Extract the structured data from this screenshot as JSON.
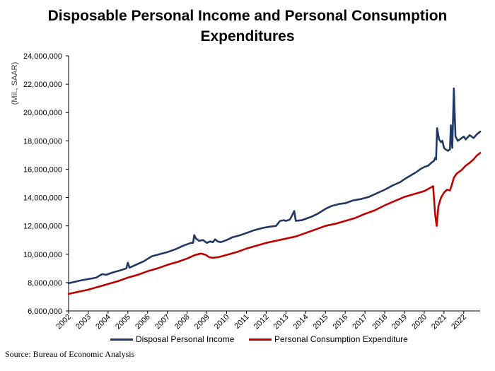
{
  "chart_data": {
    "type": "line",
    "title_line1": "Disposable Personal Income and Personal Consumption",
    "title_line2": "Expenditures",
    "ylabel": "(Mil., SAAR)",
    "xlabel": "",
    "ylim": [
      6000000,
      24000000
    ],
    "yticks": [
      6000000,
      8000000,
      10000000,
      12000000,
      14000000,
      16000000,
      18000000,
      20000000,
      22000000,
      24000000
    ],
    "ytick_labels": [
      "6,000,000",
      "8,000,000",
      "10,000,000",
      "12,000,000",
      "14,000,000",
      "16,000,000",
      "18,000,000",
      "20,000,000",
      "22,000,000",
      "24,000,000"
    ],
    "xlim": [
      2002.0,
      2022.83
    ],
    "xticks": [
      "2002",
      "2003",
      "2004",
      "2005",
      "2006",
      "2007",
      "2008",
      "2009",
      "2010",
      "2011",
      "2012",
      "2013",
      "2014",
      "2015",
      "2016",
      "2017",
      "2018",
      "2019",
      "2020",
      "2021",
      "2022"
    ],
    "grid": false,
    "legend_position": "bottom",
    "series": [
      {
        "name": "Disposal Personal Income",
        "color": "#1f3864",
        "points": [
          [
            2002.0,
            7950000
          ],
          [
            2002.3,
            8050000
          ],
          [
            2002.6,
            8150000
          ],
          [
            2003.0,
            8250000
          ],
          [
            2003.4,
            8350000
          ],
          [
            2003.7,
            8600000
          ],
          [
            2003.9,
            8550000
          ],
          [
            2004.2,
            8700000
          ],
          [
            2004.6,
            8850000
          ],
          [
            2004.92,
            9000000
          ],
          [
            2005.0,
            9400000
          ],
          [
            2005.08,
            9050000
          ],
          [
            2005.4,
            9250000
          ],
          [
            2005.8,
            9500000
          ],
          [
            2006.2,
            9850000
          ],
          [
            2006.6,
            10000000
          ],
          [
            2007.0,
            10150000
          ],
          [
            2007.4,
            10350000
          ],
          [
            2007.8,
            10600000
          ],
          [
            2008.2,
            10800000
          ],
          [
            2008.3,
            10800000
          ],
          [
            2008.36,
            11350000
          ],
          [
            2008.45,
            11100000
          ],
          [
            2008.6,
            10950000
          ],
          [
            2008.8,
            11000000
          ],
          [
            2009.0,
            10800000
          ],
          [
            2009.15,
            10900000
          ],
          [
            2009.3,
            10850000
          ],
          [
            2009.42,
            11050000
          ],
          [
            2009.55,
            10900000
          ],
          [
            2009.7,
            10850000
          ],
          [
            2010.0,
            11000000
          ],
          [
            2010.3,
            11200000
          ],
          [
            2010.7,
            11350000
          ],
          [
            2011.0,
            11500000
          ],
          [
            2011.4,
            11700000
          ],
          [
            2011.8,
            11850000
          ],
          [
            2012.2,
            11950000
          ],
          [
            2012.5,
            12000000
          ],
          [
            2012.7,
            12350000
          ],
          [
            2012.9,
            12400000
          ],
          [
            2013.0,
            12350000
          ],
          [
            2013.2,
            12450000
          ],
          [
            2013.3,
            12700000
          ],
          [
            2013.42,
            13050000
          ],
          [
            2013.5,
            12350000
          ],
          [
            2013.8,
            12400000
          ],
          [
            2014.0,
            12500000
          ],
          [
            2014.3,
            12650000
          ],
          [
            2014.6,
            12850000
          ],
          [
            2015.0,
            13200000
          ],
          [
            2015.3,
            13400000
          ],
          [
            2015.7,
            13550000
          ],
          [
            2016.0,
            13600000
          ],
          [
            2016.4,
            13800000
          ],
          [
            2016.8,
            13900000
          ],
          [
            2017.2,
            14050000
          ],
          [
            2017.6,
            14300000
          ],
          [
            2018.0,
            14550000
          ],
          [
            2018.4,
            14850000
          ],
          [
            2018.8,
            15100000
          ],
          [
            2019.0,
            15300000
          ],
          [
            2019.3,
            15550000
          ],
          [
            2019.6,
            15800000
          ],
          [
            2019.8,
            16000000
          ],
          [
            2020.0,
            16150000
          ],
          [
            2020.2,
            16250000
          ],
          [
            2020.4,
            16500000
          ],
          [
            2020.5,
            16600000
          ],
          [
            2020.55,
            16800000
          ],
          [
            2020.6,
            16700000
          ],
          [
            2020.65,
            18900000
          ],
          [
            2020.75,
            18100000
          ],
          [
            2020.85,
            17900000
          ],
          [
            2020.92,
            18000000
          ],
          [
            2021.0,
            17500000
          ],
          [
            2021.08,
            17400000
          ],
          [
            2021.2,
            17300000
          ],
          [
            2021.3,
            17400000
          ],
          [
            2021.35,
            19100000
          ],
          [
            2021.42,
            17500000
          ],
          [
            2021.5,
            21700000
          ],
          [
            2021.58,
            18300000
          ],
          [
            2021.7,
            18000000
          ],
          [
            2021.8,
            18100000
          ],
          [
            2022.0,
            18300000
          ],
          [
            2022.1,
            18100000
          ],
          [
            2022.3,
            18400000
          ],
          [
            2022.5,
            18200000
          ],
          [
            2022.65,
            18450000
          ],
          [
            2022.83,
            18650000
          ]
        ]
      },
      {
        "name": "Personal Consumption Expenditure",
        "color": "#c00000",
        "points": [
          [
            2002.0,
            7200000
          ],
          [
            2002.5,
            7350000
          ],
          [
            2003.0,
            7500000
          ],
          [
            2003.5,
            7700000
          ],
          [
            2004.0,
            7900000
          ],
          [
            2004.5,
            8100000
          ],
          [
            2005.0,
            8350000
          ],
          [
            2005.5,
            8550000
          ],
          [
            2006.0,
            8800000
          ],
          [
            2006.5,
            9000000
          ],
          [
            2007.0,
            9250000
          ],
          [
            2007.5,
            9450000
          ],
          [
            2008.0,
            9700000
          ],
          [
            2008.4,
            9950000
          ],
          [
            2008.7,
            10050000
          ],
          [
            2008.95,
            9950000
          ],
          [
            2009.1,
            9800000
          ],
          [
            2009.3,
            9750000
          ],
          [
            2009.6,
            9800000
          ],
          [
            2010.0,
            9950000
          ],
          [
            2010.5,
            10150000
          ],
          [
            2011.0,
            10400000
          ],
          [
            2011.5,
            10600000
          ],
          [
            2012.0,
            10800000
          ],
          [
            2012.5,
            10950000
          ],
          [
            2013.0,
            11100000
          ],
          [
            2013.5,
            11250000
          ],
          [
            2014.0,
            11500000
          ],
          [
            2014.5,
            11750000
          ],
          [
            2015.0,
            12000000
          ],
          [
            2015.5,
            12150000
          ],
          [
            2016.0,
            12350000
          ],
          [
            2016.5,
            12550000
          ],
          [
            2017.0,
            12850000
          ],
          [
            2017.5,
            13100000
          ],
          [
            2018.0,
            13450000
          ],
          [
            2018.5,
            13750000
          ],
          [
            2019.0,
            14050000
          ],
          [
            2019.5,
            14250000
          ],
          [
            2020.0,
            14450000
          ],
          [
            2020.45,
            14800000
          ],
          [
            2020.55,
            12850000
          ],
          [
            2020.63,
            12000000
          ],
          [
            2020.72,
            13400000
          ],
          [
            2020.85,
            14000000
          ],
          [
            2021.0,
            14350000
          ],
          [
            2021.15,
            14550000
          ],
          [
            2021.3,
            14500000
          ],
          [
            2021.4,
            14900000
          ],
          [
            2021.5,
            15400000
          ],
          [
            2021.65,
            15700000
          ],
          [
            2021.9,
            15950000
          ],
          [
            2022.1,
            16250000
          ],
          [
            2022.3,
            16450000
          ],
          [
            2022.5,
            16700000
          ],
          [
            2022.65,
            16950000
          ],
          [
            2022.83,
            17150000
          ]
        ]
      }
    ]
  },
  "source_text": "Source: Bureau of Economic Analysis"
}
